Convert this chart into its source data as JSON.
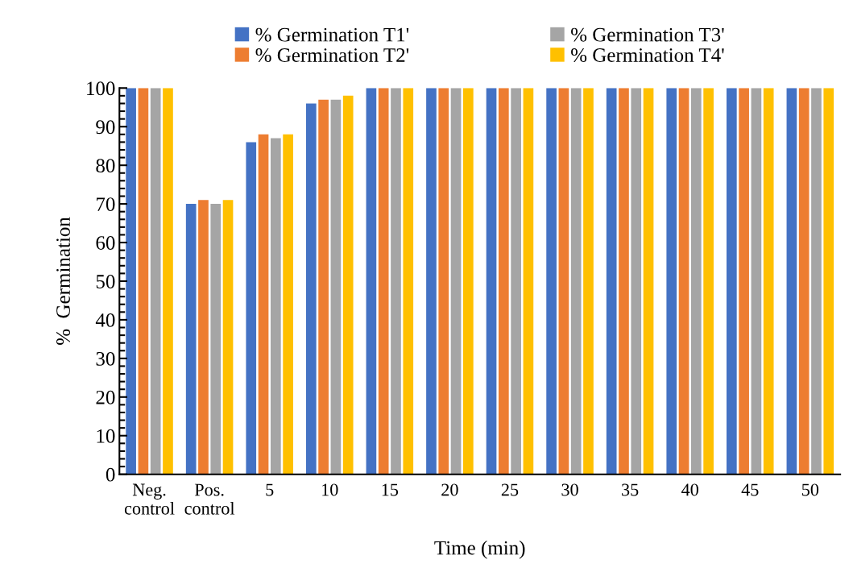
{
  "chart_data": {
    "type": "bar",
    "xlabel": "Time (min)",
    "ylabel": "%  Germination",
    "categories": [
      "Neg.\ncontrol",
      "Pos.\ncontrol",
      "5",
      "10",
      "15",
      "20",
      "25",
      "30",
      "35",
      "40",
      "45",
      "50"
    ],
    "series": [
      {
        "name": "% Germination T1'",
        "color": "#4472c4",
        "values": [
          100,
          70,
          86,
          96,
          100,
          100,
          100,
          100,
          100,
          100,
          100,
          100
        ]
      },
      {
        "name": "% Germination T2'",
        "color": "#ed7d31",
        "values": [
          100,
          71,
          88,
          97,
          100,
          100,
          100,
          100,
          100,
          100,
          100,
          100
        ]
      },
      {
        "name": "% Germination T3'",
        "color": "#a5a5a5",
        "values": [
          100,
          70,
          87,
          97,
          100,
          100,
          100,
          100,
          100,
          100,
          100,
          100
        ]
      },
      {
        "name": "% Germination T4'",
        "color": "#ffc000",
        "values": [
          100,
          71,
          88,
          98,
          100,
          100,
          100,
          100,
          100,
          100,
          100,
          100
        ]
      }
    ],
    "ylim": [
      0,
      100
    ],
    "yticks": [
      0,
      10,
      20,
      30,
      40,
      50,
      60,
      70,
      80,
      90,
      100
    ],
    "grid": false,
    "legend": "top"
  }
}
